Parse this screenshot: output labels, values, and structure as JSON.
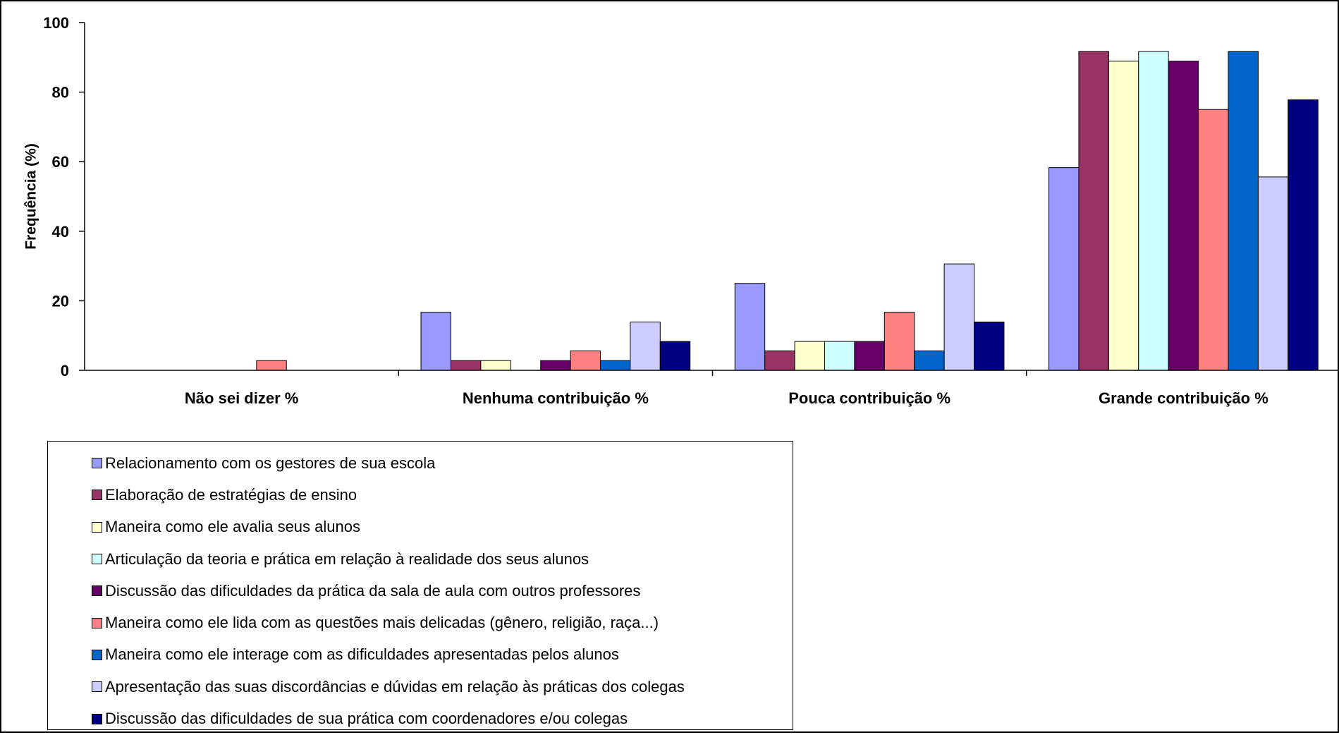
{
  "chart_data": {
    "type": "bar",
    "title": "",
    "xlabel": "",
    "ylabel": "Frequência (%)",
    "ylim": [
      0,
      100
    ],
    "yticks": [
      0,
      20,
      40,
      60,
      80,
      100
    ],
    "grid": false,
    "legend_position": "bottom-left",
    "categories": [
      "Não sei dizer %",
      "Nenhuma contribuição %",
      "Pouca contribuição %",
      "Grande contribuição %"
    ],
    "series": [
      {
        "name": "Relacionamento com os gestores de sua escola",
        "color": "#9999FF",
        "values": [
          0,
          16.7,
          25.0,
          58.3
        ]
      },
      {
        "name": "Elaboração de estratégias de ensino",
        "color": "#993366",
        "values": [
          0,
          2.8,
          5.6,
          91.7
        ]
      },
      {
        "name": "Maneira como ele avalia seus alunos",
        "color": "#FFFFCC",
        "values": [
          0,
          2.8,
          8.3,
          88.9
        ]
      },
      {
        "name": "Articulação da teoria e prática em relação à realidade dos seus alunos",
        "color": "#CCFFFF",
        "values": [
          0,
          0,
          8.3,
          91.7
        ]
      },
      {
        "name": "Discussão das dificuldades da prática da sala de aula com outros professores",
        "color": "#660066",
        "values": [
          0,
          2.8,
          8.3,
          88.9
        ]
      },
      {
        "name": "Maneira como ele lida com as questões mais delicadas (gênero, religião, raça...)",
        "color": "#FF8080",
        "values": [
          2.8,
          5.6,
          16.7,
          75.0
        ]
      },
      {
        "name": "Maneira como ele interage com as dificuldades apresentadas pelos alunos",
        "color": "#0066CC",
        "values": [
          0,
          2.8,
          5.6,
          91.7
        ]
      },
      {
        "name": "Apresentação das suas discordâncias e dúvidas em relação às práticas dos colegas",
        "color": "#CCCCFF",
        "values": [
          0,
          13.9,
          30.6,
          55.6
        ]
      },
      {
        "name": "Discussão das dificuldades de sua prática com coordenadores e/ou colegas",
        "color": "#000080",
        "values": [
          0,
          8.3,
          13.9,
          77.8
        ]
      }
    ]
  }
}
